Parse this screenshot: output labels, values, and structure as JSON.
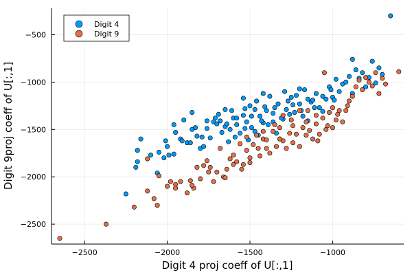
{
  "chart_data": {
    "type": "scatter",
    "xlabel": "Digit 4 proj coeff of U[:,1]",
    "ylabel": "Digit 9proj coeff of U[:,1]",
    "xlim": [
      -2700,
      -570
    ],
    "ylim": [
      -2710,
      -220
    ],
    "xticks": [
      -2500,
      -2000,
      -1500,
      -1000
    ],
    "yticks": [
      -2500,
      -2000,
      -1500,
      -1000,
      -500
    ],
    "grid": true,
    "legend_position": "top-left",
    "series": [
      {
        "name": "Digit 4",
        "color": "#009AFA",
        "points": [
          [
            -2250,
            -2180
          ],
          [
            -2190,
            -1900
          ],
          [
            -2180,
            -1840
          ],
          [
            -2180,
            -1720
          ],
          [
            -2060,
            -1960
          ],
          [
            -2020,
            -1800
          ],
          [
            -2010,
            -1620
          ],
          [
            -2000,
            -1680
          ],
          [
            -1990,
            -1770
          ],
          [
            -1960,
            -1760
          ],
          [
            -1920,
            -1600
          ],
          [
            -1900,
            -1400
          ],
          [
            -1880,
            -1640
          ],
          [
            -1860,
            -1640
          ],
          [
            -1850,
            -1320
          ],
          [
            -1820,
            -1570
          ],
          [
            -1800,
            -1700
          ],
          [
            -1780,
            -1680
          ],
          [
            -1760,
            -1490
          ],
          [
            -1740,
            -1590
          ],
          [
            -1720,
            -1420
          ],
          [
            -1700,
            -1440
          ],
          [
            -1680,
            -1410
          ],
          [
            -1670,
            -1530
          ],
          [
            -1650,
            -1470
          ],
          [
            -1630,
            -1630
          ],
          [
            -1620,
            -1500
          ],
          [
            -1600,
            -1380
          ],
          [
            -1590,
            -1580
          ],
          [
            -1580,
            -1450
          ],
          [
            -1560,
            -1540
          ],
          [
            -1540,
            -1350
          ],
          [
            -1530,
            -1280
          ],
          [
            -1520,
            -1420
          ],
          [
            -1510,
            -1610
          ],
          [
            -1500,
            -1250
          ],
          [
            -1490,
            -1480
          ],
          [
            -1470,
            -1520
          ],
          [
            -1460,
            -1200
          ],
          [
            -1450,
            -1560
          ],
          [
            -1440,
            -1360
          ],
          [
            -1420,
            -1430
          ],
          [
            -1400,
            -1300
          ],
          [
            -1380,
            -1150
          ],
          [
            -1360,
            -1420
          ],
          [
            -1350,
            -1270
          ],
          [
            -1330,
            -1230
          ],
          [
            -1320,
            -1600
          ],
          [
            -1300,
            -1390
          ],
          [
            -1290,
            -1100
          ],
          [
            -1270,
            -1200
          ],
          [
            -1250,
            -1160
          ],
          [
            -1240,
            -1240
          ],
          [
            -1220,
            -1140
          ],
          [
            -1200,
            -1230
          ],
          [
            -1190,
            -1300
          ],
          [
            -1170,
            -1080
          ],
          [
            -1150,
            -1180
          ],
          [
            -1130,
            -1210
          ],
          [
            -1100,
            -1120
          ],
          [
            -1080,
            -1270
          ],
          [
            -1060,
            -1150
          ],
          [
            -1040,
            -1180
          ],
          [
            -1020,
            -1050
          ],
          [
            -1000,
            -1160
          ],
          [
            -980,
            -970
          ],
          [
            -960,
            -1100
          ],
          [
            -940,
            -1020
          ],
          [
            -920,
            -1000
          ],
          [
            -900,
            -940
          ],
          [
            -880,
            -1120
          ],
          [
            -860,
            -870
          ],
          [
            -840,
            -960
          ],
          [
            -820,
            -900
          ],
          [
            -800,
            -1050
          ],
          [
            -780,
            -950
          ],
          [
            -760,
            -780
          ],
          [
            -740,
            -1010
          ],
          [
            -720,
            -850
          ],
          [
            -700,
            -920
          ],
          [
            -1850,
            -1500
          ],
          [
            -1690,
            -1340
          ],
          [
            -1580,
            -1380
          ],
          [
            -1530,
            -1490
          ],
          [
            -1470,
            -1290
          ],
          [
            -1410,
            -1260
          ],
          [
            -1360,
            -1330
          ],
          [
            -1260,
            -1340
          ],
          [
            -1200,
            -1070
          ],
          [
            -1120,
            -1190
          ],
          [
            -2160,
            -1600
          ],
          [
            -2100,
            -1770
          ],
          [
            -2050,
            -1740
          ],
          [
            -1960,
            -1450
          ],
          [
            -1910,
            -1620
          ],
          [
            -1790,
            -1580
          ],
          [
            -1710,
            -1380
          ],
          [
            -1640,
            -1440
          ],
          [
            -1610,
            -1300
          ],
          [
            -1490,
            -1360
          ],
          [
            -1430,
            -1410
          ],
          [
            -1390,
            -1450
          ],
          [
            -1340,
            -1540
          ],
          [
            -1310,
            -1380
          ],
          [
            -1280,
            -1290
          ],
          [
            -1230,
            -1320
          ],
          [
            -1180,
            -1360
          ],
          [
            -1110,
            -1270
          ],
          [
            -1060,
            -1310
          ],
          [
            -990,
            -1190
          ],
          [
            -650,
            -300
          ],
          [
            -880,
            -760
          ],
          [
            -1010,
            -1080
          ],
          [
            -1150,
            -1410
          ],
          [
            -1420,
            -1120
          ],
          [
            -1540,
            -1170
          ],
          [
            -1650,
            -1290
          ],
          [
            -1760,
            -1410
          ],
          [
            -1830,
            -1480
          ],
          [
            -1950,
            -1530
          ]
        ]
      },
      {
        "name": "Digit 9",
        "color": "#E26F46",
        "points": [
          [
            -2650,
            -2650
          ],
          [
            -2370,
            -2500
          ],
          [
            -2200,
            -2320
          ],
          [
            -2120,
            -1810
          ],
          [
            -2120,
            -2150
          ],
          [
            -2080,
            -2230
          ],
          [
            -2060,
            -2300
          ],
          [
            -2000,
            -2100
          ],
          [
            -1980,
            -2050
          ],
          [
            -1950,
            -2080
          ],
          [
            -1920,
            -2050
          ],
          [
            -1880,
            -2170
          ],
          [
            -1860,
            -2040
          ],
          [
            -1840,
            -2120
          ],
          [
            -1820,
            -1900
          ],
          [
            -1800,
            -2020
          ],
          [
            -1780,
            -1880
          ],
          [
            -1760,
            -1830
          ],
          [
            -1740,
            -1900
          ],
          [
            -1720,
            -2050
          ],
          [
            -1700,
            -1950
          ],
          [
            -1680,
            -1700
          ],
          [
            -1660,
            -2000
          ],
          [
            -1640,
            -1920
          ],
          [
            -1620,
            -1810
          ],
          [
            -1600,
            -1770
          ],
          [
            -1580,
            -1840
          ],
          [
            -1560,
            -1650
          ],
          [
            -1540,
            -1870
          ],
          [
            -1520,
            -1720
          ],
          [
            -1500,
            -1800
          ],
          [
            -1480,
            -1660
          ],
          [
            -1460,
            -1560
          ],
          [
            -1440,
            -1780
          ],
          [
            -1420,
            -1600
          ],
          [
            -1400,
            -1700
          ],
          [
            -1380,
            -1750
          ],
          [
            -1360,
            -1520
          ],
          [
            -1340,
            -1680
          ],
          [
            -1320,
            -1480
          ],
          [
            -1300,
            -1620
          ],
          [
            -1280,
            -1700
          ],
          [
            -1260,
            -1540
          ],
          [
            -1240,
            -1640
          ],
          [
            -1220,
            -1550
          ],
          [
            -1200,
            -1680
          ],
          [
            -1180,
            -1480
          ],
          [
            -1160,
            -1560
          ],
          [
            -1140,
            -1510
          ],
          [
            -1120,
            -1600
          ],
          [
            -1100,
            -1440
          ],
          [
            -1080,
            -1550
          ],
          [
            -1060,
            -1380
          ],
          [
            -1040,
            -1500
          ],
          [
            -1020,
            -1320
          ],
          [
            -1000,
            -1480
          ],
          [
            -980,
            -1400
          ],
          [
            -960,
            -1300
          ],
          [
            -940,
            -1420
          ],
          [
            -920,
            -1300
          ],
          [
            -900,
            -1200
          ],
          [
            -880,
            -1150
          ],
          [
            -860,
            -1050
          ],
          [
            -840,
            -980
          ],
          [
            -820,
            -1080
          ],
          [
            -800,
            -950
          ],
          [
            -780,
            -1000
          ],
          [
            -760,
            -1040
          ],
          [
            -740,
            -900
          ],
          [
            -720,
            -1120
          ],
          [
            -700,
            -960
          ],
          [
            -600,
            -890
          ],
          [
            -680,
            -1020
          ],
          [
            -1050,
            -900
          ],
          [
            -1150,
            -1300
          ],
          [
            -1250,
            -1400
          ],
          [
            -1350,
            -1450
          ],
          [
            -1450,
            -1700
          ],
          [
            -1550,
            -1920
          ],
          [
            -1650,
            -2010
          ],
          [
            -1750,
            -1950
          ],
          [
            -1850,
            -2090
          ],
          [
            -1950,
            -2120
          ],
          [
            -2050,
            -1990
          ],
          [
            -1600,
            -1870
          ],
          [
            -1500,
            -1850
          ],
          [
            -1400,
            -1610
          ],
          [
            -1300,
            -1350
          ],
          [
            -1200,
            -1300
          ],
          [
            -1100,
            -1350
          ],
          [
            -1000,
            -1270
          ],
          [
            -1520,
            -1580
          ],
          [
            -1420,
            -1520
          ],
          [
            -1320,
            -1600
          ],
          [
            -1240,
            -1460
          ],
          [
            -1160,
            -1420
          ],
          [
            -1090,
            -1620
          ],
          [
            -1030,
            -1460
          ],
          [
            -970,
            -1340
          ],
          [
            -910,
            -1250
          ]
        ]
      }
    ]
  }
}
